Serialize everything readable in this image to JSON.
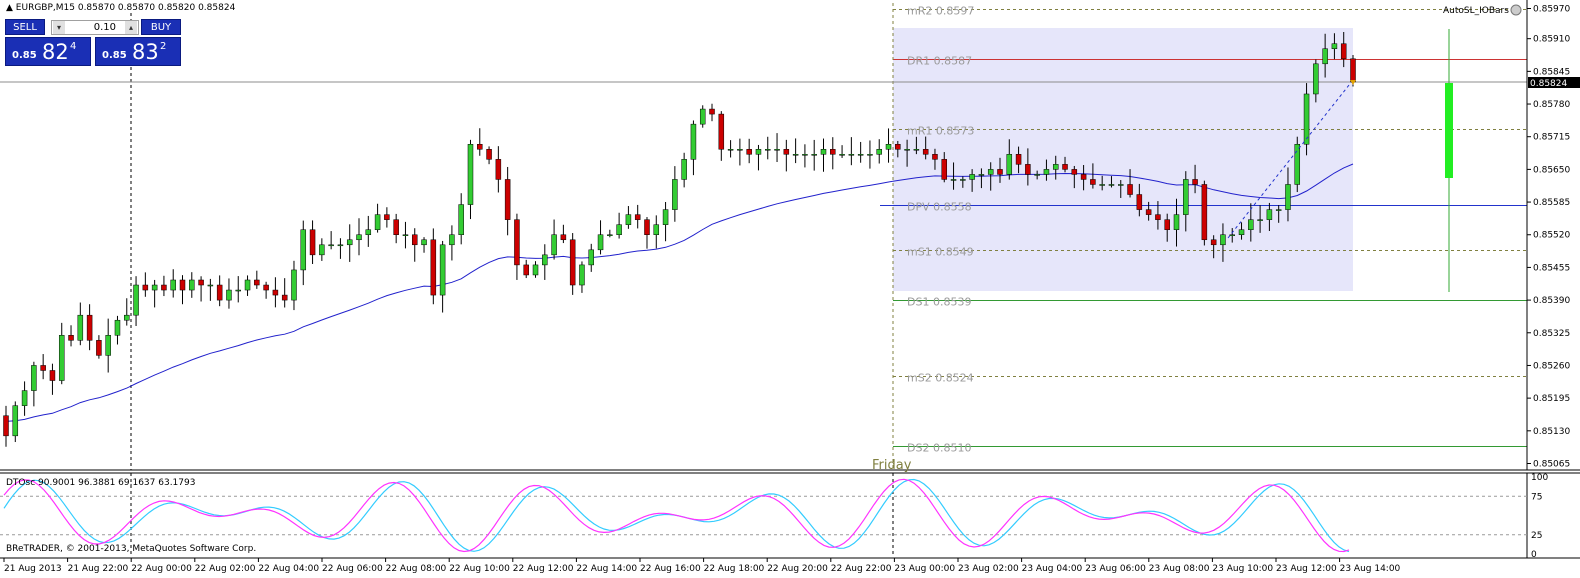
{
  "header": {
    "symbol_line": "EURGBP,M15  0.85870 0.85870 0.85820 0.85824",
    "collapse_icon": "triangle-up-icon"
  },
  "trade_panel": {
    "sell_label": "SELL",
    "buy_label": "BUY",
    "lot_value": "0.10",
    "sell_price_prefix": "0.85",
    "sell_price_big": "82",
    "sell_price_sup": "4",
    "buy_price_prefix": "0.85",
    "buy_price_big": "83",
    "buy_price_sup": "2"
  },
  "indicator_label": "AutoSL_IOBars",
  "current_price_label": "0.85824",
  "friday_label": "Friday",
  "oscillator": {
    "label": "DTOsc 90.9001 96.3881 69.1637 63.1793",
    "ticks": [
      "100",
      "75",
      "25",
      "0"
    ],
    "levels": [
      75,
      25
    ],
    "fast_line_color": "#ff33ff",
    "slow_line_color": "#33ccff"
  },
  "copyright": "BReTRADER, © 2001-2013, MetaQuotes Software Corp.",
  "colors": {
    "bull": "#33cc33",
    "bear": "#cc0000",
    "ma": "#2222cc",
    "pivot_box": "#e6e6fa",
    "dr_line": "#cc3333",
    "ds_line": "#339933"
  },
  "levels": [
    {
      "name": "mR2",
      "value": "0.8597",
      "price": 0.8597,
      "style": "dotted",
      "color": "#808040"
    },
    {
      "name": "DR1",
      "value": "0.8587",
      "price": 0.8587,
      "style": "solid",
      "color": "#cc3333"
    },
    {
      "name": "mR1",
      "value": "0.8573",
      "price": 0.8573,
      "style": "dotted",
      "color": "#808040"
    },
    {
      "name": "DPV",
      "value": "0.8558",
      "price": 0.8558,
      "style": "solid",
      "color": "#2233cc"
    },
    {
      "name": "mS1",
      "value": "0.8549",
      "price": 0.8549,
      "style": "dotted",
      "color": "#808040"
    },
    {
      "name": "DS1",
      "value": "0.8539",
      "price": 0.8539,
      "style": "solid",
      "color": "#339933"
    },
    {
      "name": "mS2",
      "value": "0.8524",
      "price": 0.8524,
      "style": "dotted",
      "color": "#808040"
    },
    {
      "name": "DS2",
      "value": "0.8510",
      "price": 0.851,
      "style": "solid",
      "color": "#339933"
    }
  ],
  "chart_data": {
    "type": "candlestick",
    "symbol": "EURGBP",
    "timeframe": "M15",
    "ylim": [
      0.8503,
      0.8599
    ],
    "y_ticks": [
      "0.85970",
      "0.85910",
      "0.85845",
      "0.85780",
      "0.85715",
      "0.85650",
      "0.85585",
      "0.85520",
      "0.85455",
      "0.85390",
      "0.85325",
      "0.85260",
      "0.85195",
      "0.85130",
      "0.85065"
    ],
    "x_ticks": [
      "21 Aug 2013",
      "21 Aug 22:00",
      "22 Aug 00:00",
      "22 Aug 02:00",
      "22 Aug 04:00",
      "22 Aug 06:00",
      "22 Aug 08:00",
      "22 Aug 10:00",
      "22 Aug 12:00",
      "22 Aug 14:00",
      "22 Aug 16:00",
      "22 Aug 18:00",
      "22 Aug 20:00",
      "22 Aug 22:00",
      "23 Aug 00:00",
      "23 Aug 02:00",
      "23 Aug 04:00",
      "23 Aug 06:00",
      "23 Aug 08:00",
      "23 Aug 10:00",
      "23 Aug 12:00",
      "23 Aug 14:00"
    ],
    "closes": [
      0.8512,
      0.8518,
      0.8521,
      0.8526,
      0.8525,
      0.8523,
      0.8532,
      0.8531,
      0.8536,
      0.8531,
      0.8528,
      0.8532,
      0.8535,
      0.8536,
      0.8542,
      0.8541,
      0.8542,
      0.8541,
      0.8543,
      0.8541,
      0.8543,
      0.8542,
      0.8542,
      0.8539,
      0.8541,
      0.8541,
      0.8543,
      0.8542,
      0.8541,
      0.854,
      0.8539,
      0.8545,
      0.8553,
      0.8548,
      0.855,
      0.855,
      0.855,
      0.8551,
      0.8552,
      0.8553,
      0.8556,
      0.8555,
      0.8552,
      0.8552,
      0.855,
      0.8551,
      0.854,
      0.855,
      0.8552,
      0.8558,
      0.857,
      0.8569,
      0.8567,
      0.8563,
      0.8555,
      0.8546,
      0.8544,
      0.8546,
      0.8548,
      0.8552,
      0.8551,
      0.8542,
      0.8546,
      0.8549,
      0.8552,
      0.8552,
      0.8554,
      0.8556,
      0.8555,
      0.8552,
      0.8554,
      0.8557,
      0.8563,
      0.8567,
      0.8574,
      0.8577,
      0.8576,
      0.8569,
      0.8569,
      0.8569,
      0.8568,
      0.8569,
      0.8569,
      0.8569,
      0.8568,
      0.8568,
      0.8568,
      0.8568,
      0.8569,
      0.8568,
      0.8568,
      0.8568,
      0.8568,
      0.8568,
      0.8569,
      0.857,
      0.8569,
      0.8569,
      0.8569,
      0.8568,
      0.8567,
      0.8563,
      0.8563,
      0.8563,
      0.8564,
      0.8564,
      0.8565,
      0.8564,
      0.8568,
      0.8566,
      0.8564,
      0.8564,
      0.8565,
      0.8566,
      0.8565,
      0.8564,
      0.8563,
      0.8562,
      0.8562,
      0.8562,
      0.8562,
      0.856,
      0.8557,
      0.8556,
      0.8555,
      0.8553,
      0.8556,
      0.8563,
      0.8562,
      0.8551,
      0.855,
      0.8552,
      0.8552,
      0.8553,
      0.8555,
      0.8555,
      0.8557,
      0.8557,
      0.8562,
      0.857,
      0.858,
      0.8586,
      0.8589,
      0.859,
      0.8587,
      0.85824
    ],
    "ma_label": "moving average"
  }
}
